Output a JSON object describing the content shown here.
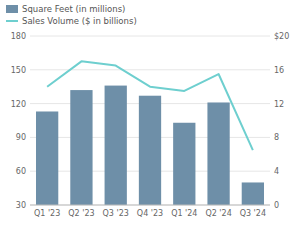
{
  "chart_data": {
    "type": "bar",
    "categories": [
      "Q1 '23",
      "Q2 '23",
      "Q3 '23",
      "Q4 '23",
      "Q1 '24",
      "Q2 '24",
      "Q3 '24"
    ],
    "series": [
      {
        "name": "Square Feet (in millions)",
        "type": "bar",
        "color": "#6e8fa8",
        "values": [
          113,
          132,
          136,
          127,
          103,
          121,
          50
        ]
      },
      {
        "name": "Sales Volume ($ in billions)",
        "type": "line",
        "color": "#6ecfcf",
        "axis": "y2",
        "values": [
          14,
          17,
          16.5,
          14,
          13.5,
          15.5,
          6.5
        ]
      }
    ],
    "ylim": [
      30,
      180
    ],
    "yticks": [
      30,
      60,
      90,
      120,
      150,
      180
    ],
    "y2lim": [
      0,
      20
    ],
    "y2ticks": [
      0,
      4,
      8,
      12,
      16,
      {
        "value": 20,
        "label": "$20"
      }
    ],
    "grid": true,
    "legend": "top-left"
  }
}
